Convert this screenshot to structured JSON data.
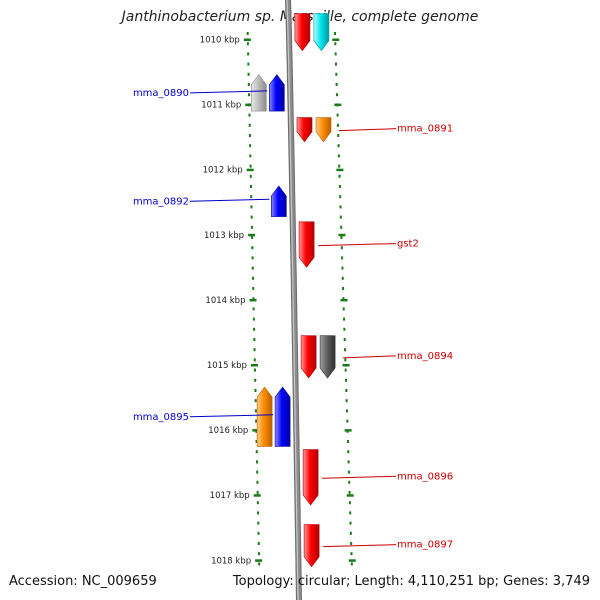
{
  "title": "Janthinobacterium sp. Marseille, complete genome",
  "footer": {
    "accession": "Accession: NC_009659",
    "topology": "Topology: circular; Length: 4,110,251 bp; Genes: 3,749"
  },
  "ticks": [
    {
      "label": "1010 kbp",
      "kbp": 1010
    },
    {
      "label": "1011 kbp",
      "kbp": 1011
    },
    {
      "label": "1012 kbp",
      "kbp": 1012
    },
    {
      "label": "1013 kbp",
      "kbp": 1013
    },
    {
      "label": "1014 kbp",
      "kbp": 1014
    },
    {
      "label": "1015 kbp",
      "kbp": 1015
    },
    {
      "label": "1016 kbp",
      "kbp": 1016
    },
    {
      "label": "1017 kbp",
      "kbp": 1017
    },
    {
      "label": "1018 kbp",
      "kbp": 1018
    }
  ],
  "genes": [
    {
      "name": "",
      "strand": "+",
      "lane": 1,
      "start": 1009.6,
      "end": 1010.17,
      "color": "#ff0000",
      "dark": "#b00000",
      "light": "#ff9a9a"
    },
    {
      "name": "",
      "strand": "+",
      "lane": 2,
      "start": 1009.6,
      "end": 1010.17,
      "color": "#00e5ee",
      "dark": "#009aa0",
      "light": "#b8fbff"
    },
    {
      "name": "",
      "strand": "-",
      "lane": 2,
      "start": 1010.54,
      "end": 1011.1,
      "color": "#c0c0c0",
      "dark": "#8a8a8a",
      "light": "#e8e8e8"
    },
    {
      "name": "mma_0890",
      "strand": "-",
      "lane": 1,
      "start": 1010.54,
      "end": 1011.1,
      "color": "#0000ff",
      "dark": "#0000a0",
      "light": "#8a8aff"
    },
    {
      "name": "",
      "strand": "+",
      "lane": 1,
      "start": 1011.2,
      "end": 1011.57,
      "color": "#ff0000",
      "dark": "#b00000",
      "light": "#ff9a9a"
    },
    {
      "name": "mma_0891",
      "strand": "+",
      "lane": 2,
      "start": 1011.2,
      "end": 1011.57,
      "color": "#ff8c00",
      "dark": "#b86000",
      "light": "#ffcc88"
    },
    {
      "name": "mma_0892",
      "strand": "-",
      "lane": 1,
      "start": 1012.25,
      "end": 1012.72,
      "color": "#0000ff",
      "dark": "#0000a0",
      "light": "#8a8aff"
    },
    {
      "name": "gst2",
      "strand": "+",
      "lane": 1,
      "start": 1012.8,
      "end": 1013.5,
      "color": "#ff0000",
      "dark": "#b00000",
      "light": "#ff9a9a"
    },
    {
      "name": "",
      "strand": "+",
      "lane": 1,
      "start": 1014.55,
      "end": 1015.2,
      "color": "#ff0000",
      "dark": "#b00000",
      "light": "#ff9a9a"
    },
    {
      "name": "mma_0894",
      "strand": "+",
      "lane": 2,
      "start": 1014.55,
      "end": 1015.2,
      "color": "#606060",
      "dark": "#303030",
      "light": "#a0a0a0"
    },
    {
      "name": "",
      "strand": "-",
      "lane": 2,
      "start": 1015.34,
      "end": 1016.25,
      "color": "#ff8c00",
      "dark": "#b86000",
      "light": "#ffcc88"
    },
    {
      "name": "mma_0895",
      "strand": "-",
      "lane": 1,
      "start": 1015.34,
      "end": 1016.25,
      "color": "#0000ff",
      "dark": "#0000a0",
      "light": "#8a8aff"
    },
    {
      "name": "mma_0896",
      "strand": "+",
      "lane": 1,
      "start": 1016.3,
      "end": 1017.15,
      "color": "#ff0000",
      "dark": "#b00000",
      "light": "#ff9a9a"
    },
    {
      "name": "mma_0897",
      "strand": "+",
      "lane": 1,
      "start": 1017.45,
      "end": 1018.1,
      "color": "#ff0000",
      "dark": "#b00000",
      "light": "#ff9a9a"
    }
  ],
  "colors": {
    "backbone": "#8c8c8c",
    "tick_color": "#1a7a1a",
    "label_plus": "#cc0000",
    "label_minus": "#0000cc"
  }
}
